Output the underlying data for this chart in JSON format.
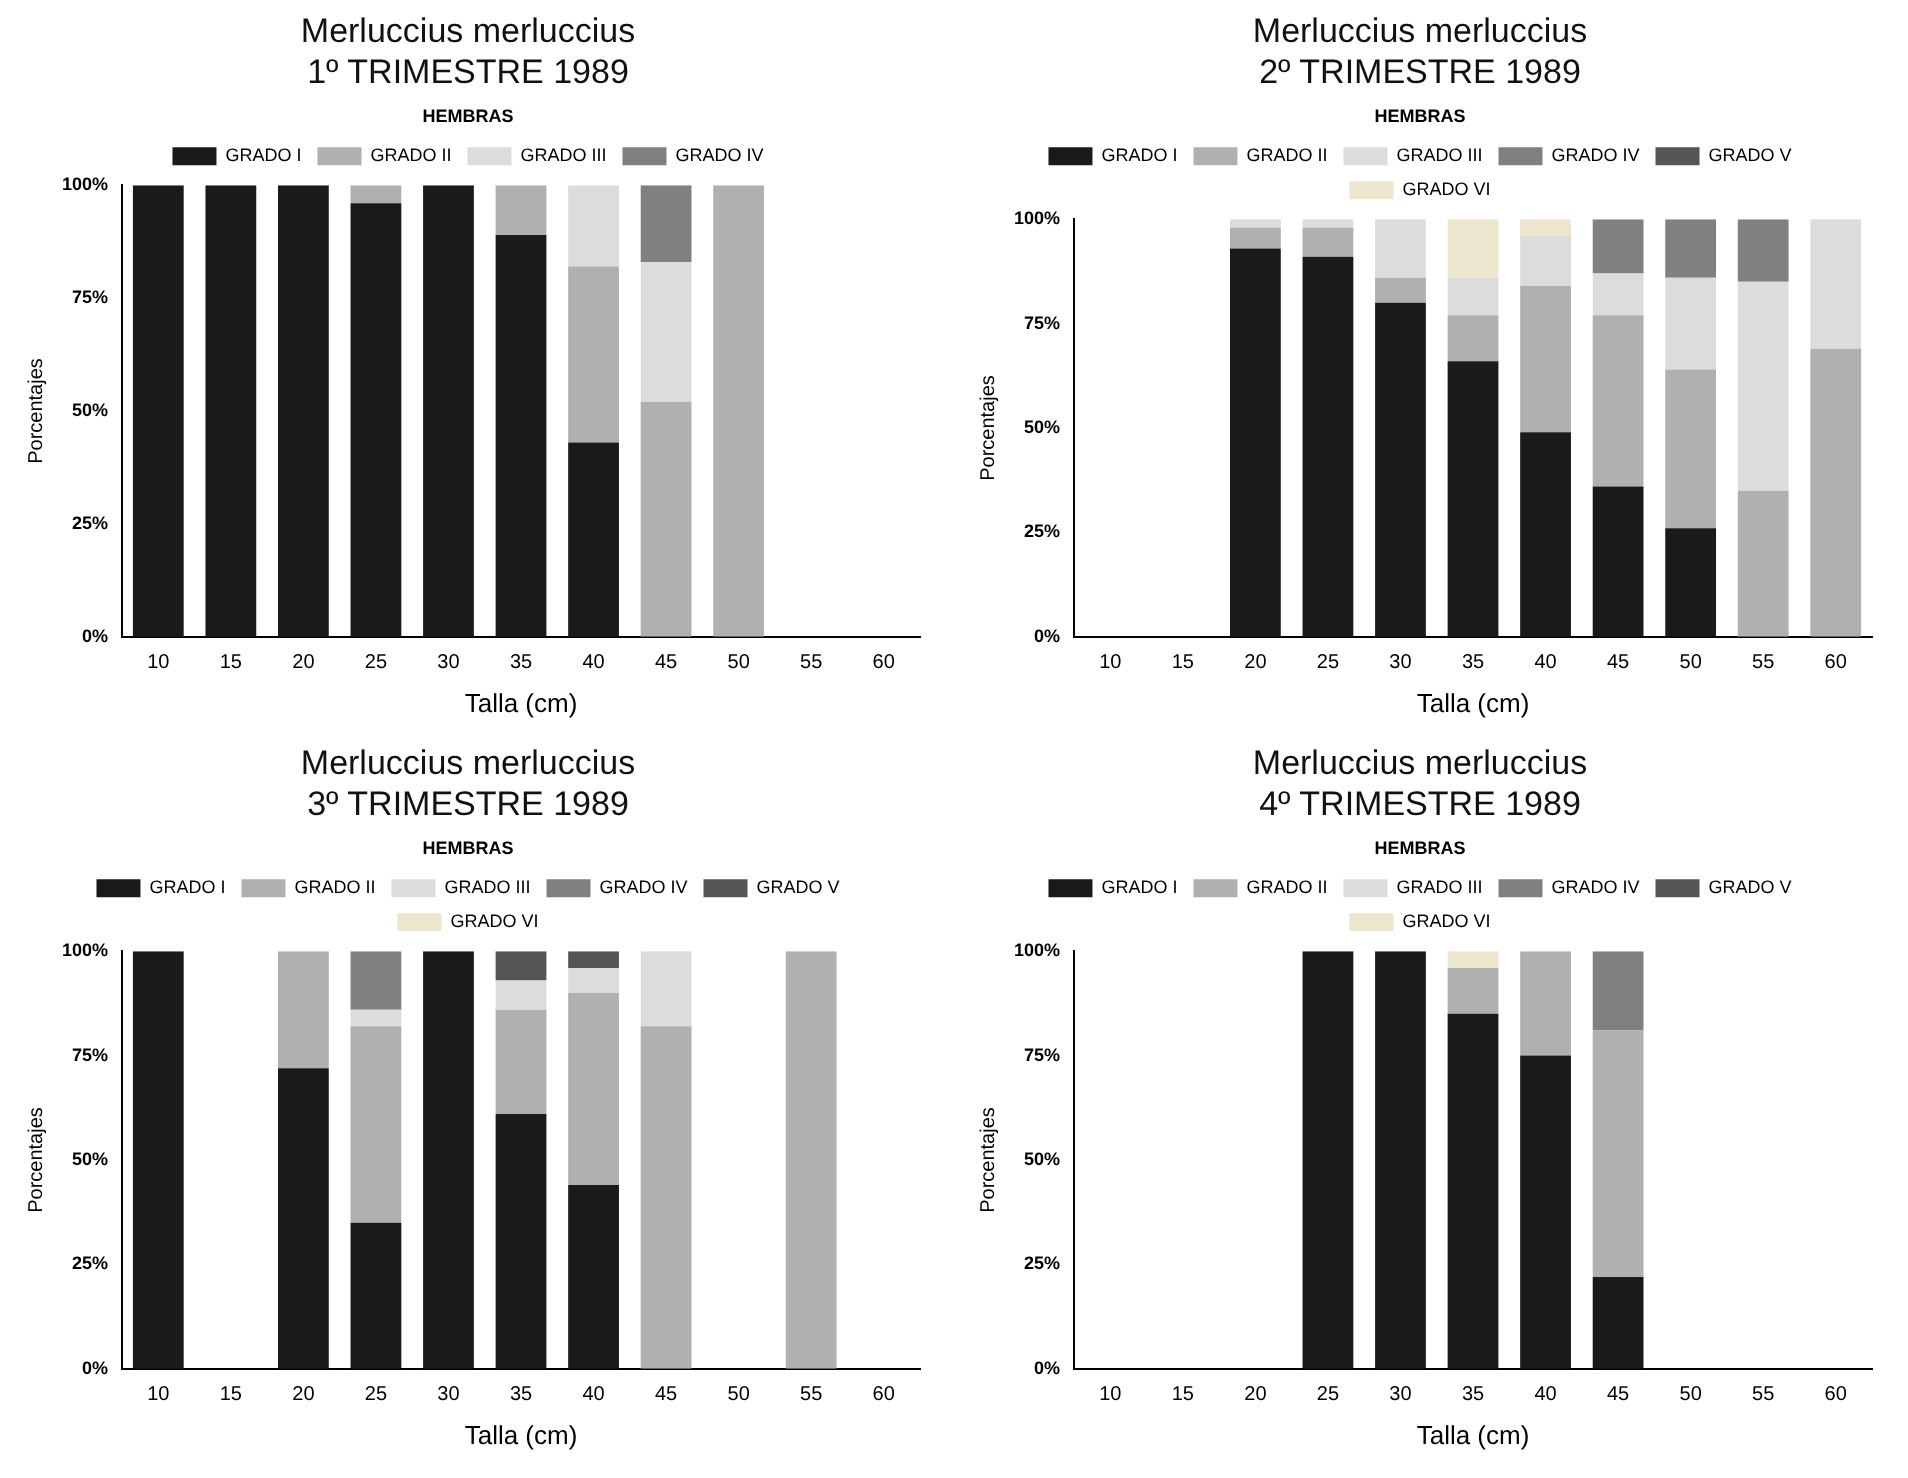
{
  "chart_data": [
    {
      "type": "bar",
      "title": "Merluccius merluccius",
      "subtitle": "1º TRIMESTRE 1989",
      "xlabel": "Talla (cm)",
      "ylabel": "Porcentajes",
      "legend_title": "HEMBRAS",
      "legend": "top",
      "stacked": true,
      "grid": false,
      "categories": [
        "10",
        "15",
        "20",
        "25",
        "30",
        "35",
        "40",
        "45",
        "50",
        "55",
        "60"
      ],
      "ylim": [
        0,
        100
      ],
      "yticks": [
        {
          "value": 0,
          "label": "0%"
        },
        {
          "value": 25,
          "label": "25%"
        },
        {
          "value": 50,
          "label": "50%"
        },
        {
          "value": 75,
          "label": "75%"
        },
        {
          "value": 100,
          "label": "100%"
        }
      ],
      "series": [
        {
          "name": "GRADO I",
          "color": "#1a1a1a",
          "values": [
            100,
            100,
            100,
            96,
            100,
            89,
            43,
            null,
            null,
            null,
            null
          ]
        },
        {
          "name": "GRADO II",
          "color": "#b0b0b0",
          "values": [
            null,
            null,
            null,
            4,
            null,
            11,
            39,
            52,
            100,
            null,
            null
          ]
        },
        {
          "name": "GRADO III",
          "color": "#dcdcdc",
          "values": [
            null,
            null,
            null,
            null,
            null,
            null,
            18,
            31,
            null,
            null,
            null
          ]
        },
        {
          "name": "GRADO IV",
          "color": "#808080",
          "values": [
            null,
            null,
            null,
            null,
            null,
            null,
            null,
            17,
            null,
            null,
            null
          ]
        }
      ]
    },
    {
      "type": "bar",
      "title": "Merluccius merluccius",
      "subtitle": "2º TRIMESTRE 1989",
      "xlabel": "Talla (cm)",
      "ylabel": "Porcentajes",
      "legend_title": "HEMBRAS",
      "legend": "top",
      "stacked": true,
      "grid": false,
      "categories": [
        "10",
        "15",
        "20",
        "25",
        "30",
        "35",
        "40",
        "45",
        "50",
        "55",
        "60"
      ],
      "ylim": [
        0,
        100
      ],
      "yticks": [
        {
          "value": 0,
          "label": "0%"
        },
        {
          "value": 25,
          "label": "25%"
        },
        {
          "value": 50,
          "label": "50%"
        },
        {
          "value": 75,
          "label": "75%"
        },
        {
          "value": 100,
          "label": "100%"
        }
      ],
      "series": [
        {
          "name": "GRADO I",
          "color": "#1a1a1a",
          "values": [
            null,
            null,
            93,
            91,
            80,
            66,
            49,
            36,
            26,
            null,
            null
          ]
        },
        {
          "name": "GRADO II",
          "color": "#b0b0b0",
          "values": [
            null,
            null,
            5,
            7,
            6,
            11,
            35,
            41,
            38,
            35,
            69
          ]
        },
        {
          "name": "GRADO III",
          "color": "#dcdcdc",
          "values": [
            null,
            null,
            2,
            2,
            14,
            9,
            12,
            10,
            22,
            50,
            31
          ]
        },
        {
          "name": "GRADO IV",
          "color": "#808080",
          "values": [
            null,
            null,
            null,
            null,
            null,
            null,
            null,
            13,
            14,
            15,
            null
          ]
        },
        {
          "name": "GRADO V",
          "color": "#555555",
          "values": [
            null,
            null,
            null,
            null,
            null,
            null,
            null,
            null,
            null,
            null,
            null
          ]
        },
        {
          "name": "GRADO VI",
          "color": "#ece6cf",
          "values": [
            null,
            null,
            null,
            null,
            null,
            14,
            4,
            null,
            null,
            null,
            null
          ]
        }
      ]
    },
    {
      "type": "bar",
      "title": "Merluccius merluccius",
      "subtitle": "3º TRIMESTRE 1989",
      "xlabel": "Talla (cm)",
      "ylabel": "Porcentajes",
      "legend_title": "HEMBRAS",
      "legend": "top",
      "stacked": true,
      "grid": false,
      "categories": [
        "10",
        "15",
        "20",
        "25",
        "30",
        "35",
        "40",
        "45",
        "50",
        "55",
        "60"
      ],
      "ylim": [
        0,
        100
      ],
      "yticks": [
        {
          "value": 0,
          "label": "0%"
        },
        {
          "value": 25,
          "label": "25%"
        },
        {
          "value": 50,
          "label": "50%"
        },
        {
          "value": 75,
          "label": "75%"
        },
        {
          "value": 100,
          "label": "100%"
        }
      ],
      "series": [
        {
          "name": "GRADO I",
          "color": "#1a1a1a",
          "values": [
            100,
            null,
            72,
            35,
            100,
            61,
            44,
            null,
            null,
            null,
            null
          ]
        },
        {
          "name": "GRADO II",
          "color": "#b0b0b0",
          "values": [
            null,
            null,
            28,
            47,
            null,
            25,
            46,
            82,
            null,
            100,
            null
          ]
        },
        {
          "name": "GRADO III",
          "color": "#dcdcdc",
          "values": [
            null,
            null,
            null,
            4,
            null,
            7,
            6,
            18,
            null,
            null,
            null
          ]
        },
        {
          "name": "GRADO IV",
          "color": "#808080",
          "values": [
            null,
            null,
            null,
            14,
            null,
            null,
            null,
            null,
            null,
            null,
            null
          ]
        },
        {
          "name": "GRADO V",
          "color": "#555555",
          "values": [
            null,
            null,
            null,
            null,
            null,
            7,
            4,
            null,
            null,
            null,
            null
          ]
        },
        {
          "name": "GRADO VI",
          "color": "#ece6cf",
          "values": [
            null,
            null,
            null,
            null,
            null,
            null,
            null,
            null,
            null,
            null,
            null
          ]
        }
      ]
    },
    {
      "type": "bar",
      "title": "Merluccius merluccius",
      "subtitle": "4º TRIMESTRE 1989",
      "xlabel": "Talla (cm)",
      "ylabel": "Porcentajes",
      "legend_title": "HEMBRAS",
      "legend": "top",
      "stacked": true,
      "grid": false,
      "categories": [
        "10",
        "15",
        "20",
        "25",
        "30",
        "35",
        "40",
        "45",
        "50",
        "55",
        "60"
      ],
      "ylim": [
        0,
        100
      ],
      "yticks": [
        {
          "value": 0,
          "label": "0%"
        },
        {
          "value": 25,
          "label": "25%"
        },
        {
          "value": 50,
          "label": "50%"
        },
        {
          "value": 75,
          "label": "75%"
        },
        {
          "value": 100,
          "label": "100%"
        }
      ],
      "series": [
        {
          "name": "GRADO I",
          "color": "#1a1a1a",
          "values": [
            null,
            null,
            null,
            100,
            100,
            85,
            75,
            22,
            null,
            null,
            null
          ]
        },
        {
          "name": "GRADO II",
          "color": "#b0b0b0",
          "values": [
            null,
            null,
            null,
            null,
            null,
            11,
            25,
            59,
            null,
            null,
            null
          ]
        },
        {
          "name": "GRADO III",
          "color": "#dcdcdc",
          "values": [
            null,
            null,
            null,
            null,
            null,
            null,
            null,
            null,
            null,
            null,
            null
          ]
        },
        {
          "name": "GRADO IV",
          "color": "#808080",
          "values": [
            null,
            null,
            null,
            null,
            null,
            null,
            null,
            19,
            null,
            null,
            null
          ]
        },
        {
          "name": "GRADO V",
          "color": "#555555",
          "values": [
            null,
            null,
            null,
            null,
            null,
            null,
            null,
            null,
            null,
            null,
            null
          ]
        },
        {
          "name": "GRADO VI",
          "color": "#ece6cf",
          "values": [
            null,
            null,
            null,
            null,
            null,
            4,
            null,
            null,
            null,
            null,
            null
          ]
        }
      ]
    }
  ]
}
